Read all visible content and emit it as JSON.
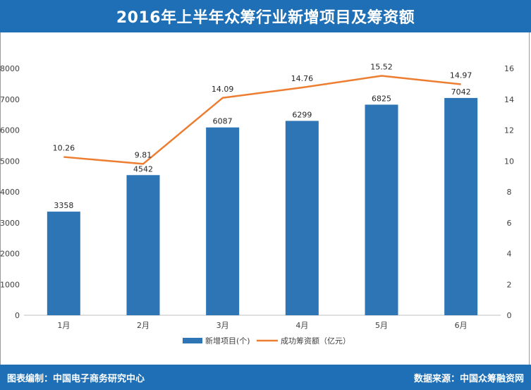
{
  "header": {
    "title": "2016年上半年众筹行业新增项目及筹资额"
  },
  "footer": {
    "left": "图表编制：中国电子商务研究中心",
    "right": "数据来源：中国众筹融资网"
  },
  "colors": {
    "bar": "#2e75b6",
    "line": "#ed7d31",
    "header": "#1e6fb5"
  },
  "chart_data": {
    "type": "bar",
    "categories": [
      "1月",
      "2月",
      "3月",
      "4月",
      "5月",
      "6月"
    ],
    "series": [
      {
        "name": "新增项目(个)",
        "type": "bar",
        "axis": "left",
        "values": [
          3358,
          4542,
          6087,
          6299,
          6825,
          7042
        ]
      },
      {
        "name": "成功筹资额（亿元）",
        "type": "line",
        "axis": "right",
        "values": [
          10.26,
          9.81,
          14.09,
          14.76,
          15.52,
          14.97
        ]
      }
    ],
    "yleft": {
      "min": 0,
      "max": 8000,
      "ticks": [
        0,
        1000,
        2000,
        3000,
        4000,
        5000,
        6000,
        7000,
        8000
      ]
    },
    "yright": {
      "min": 0,
      "max": 16,
      "ticks": [
        0,
        2,
        4,
        6,
        8,
        10,
        12,
        14,
        16
      ]
    },
    "grid": false,
    "legend_position": "bottom"
  }
}
